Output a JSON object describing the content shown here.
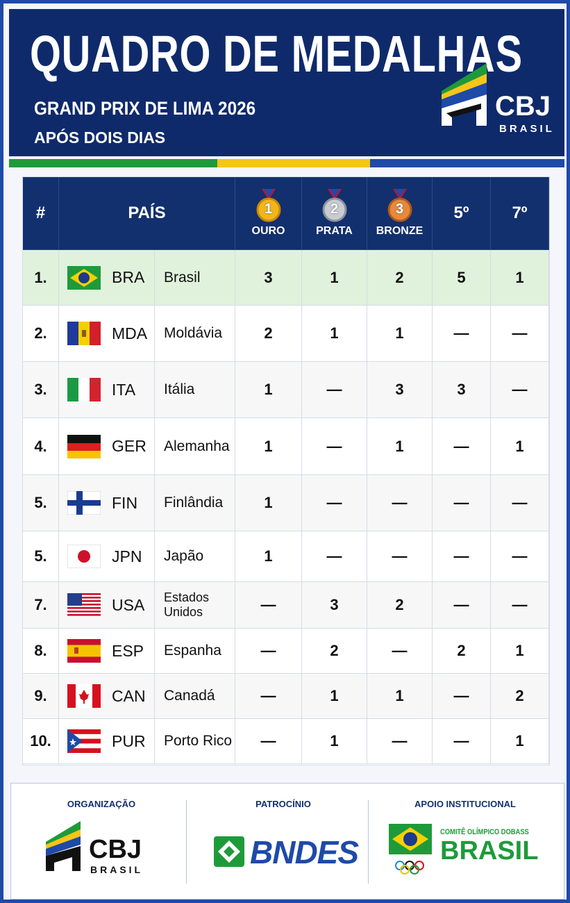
{
  "header": {
    "title": "QUADRO DE MEDALHAS",
    "subtitle": "GRAND PRIX DE LIMA 2026",
    "note": "APÓS DOIS DIAS",
    "logo": {
      "name": "CBJ",
      "country": "BRASIL"
    }
  },
  "table": {
    "columns": [
      {
        "label": "#"
      },
      {
        "label": "PAÍS"
      },
      {
        "icon": "1",
        "label": "OURO"
      },
      {
        "icon": "2",
        "label": "PRATA"
      },
      {
        "icon": "3",
        "label": "BRONZE"
      },
      {
        "label": "5º"
      },
      {
        "label": "7º"
      }
    ],
    "rows": [
      [
        "1.",
        "BRA",
        "Brasil",
        3,
        1,
        2,
        5,
        1
      ],
      [
        "2.",
        "MDA",
        "Moldávia",
        2,
        1,
        1,
        "—",
        "—"
      ],
      [
        "3.",
        "ITA",
        "Itália",
        1,
        "—",
        3,
        3,
        "—"
      ],
      [
        "4.",
        "GER",
        "Alemanha",
        1,
        "—",
        1,
        "—",
        1
      ],
      [
        "5.",
        "FIN",
        "Finlândia",
        1,
        "—",
        "—",
        "—",
        "—"
      ],
      [
        "5.",
        "JPN",
        "Japão",
        1,
        "—",
        "—",
        "—",
        "—"
      ],
      [
        "7.",
        "USA",
        "Estados Unidos",
        "—",
        3,
        2,
        "—",
        "—"
      ],
      [
        "8.",
        "ESP",
        "Espanha",
        "—",
        2,
        "—",
        2,
        1
      ],
      [
        "9.",
        "CAN",
        "Canadá",
        "—",
        1,
        1,
        "—",
        2
      ],
      [
        "10.",
        "PUR",
        "Porto Rico",
        "—",
        1,
        "—",
        "—",
        1
      ]
    ]
  },
  "footer": {
    "sections": [
      {
        "title": "ORGANIZAÇÃO",
        "logo": [
          "CBJ",
          "BRASIL"
        ]
      },
      {
        "title": "PATROCÍNIO",
        "logo": [
          "BNDES"
        ]
      },
      {
        "title": "APOIO INSTITUCIONAL",
        "logo": [
          "COMITÊ OLÍMPICO DOBASS",
          "BRASIL"
        ]
      }
    ]
  }
}
